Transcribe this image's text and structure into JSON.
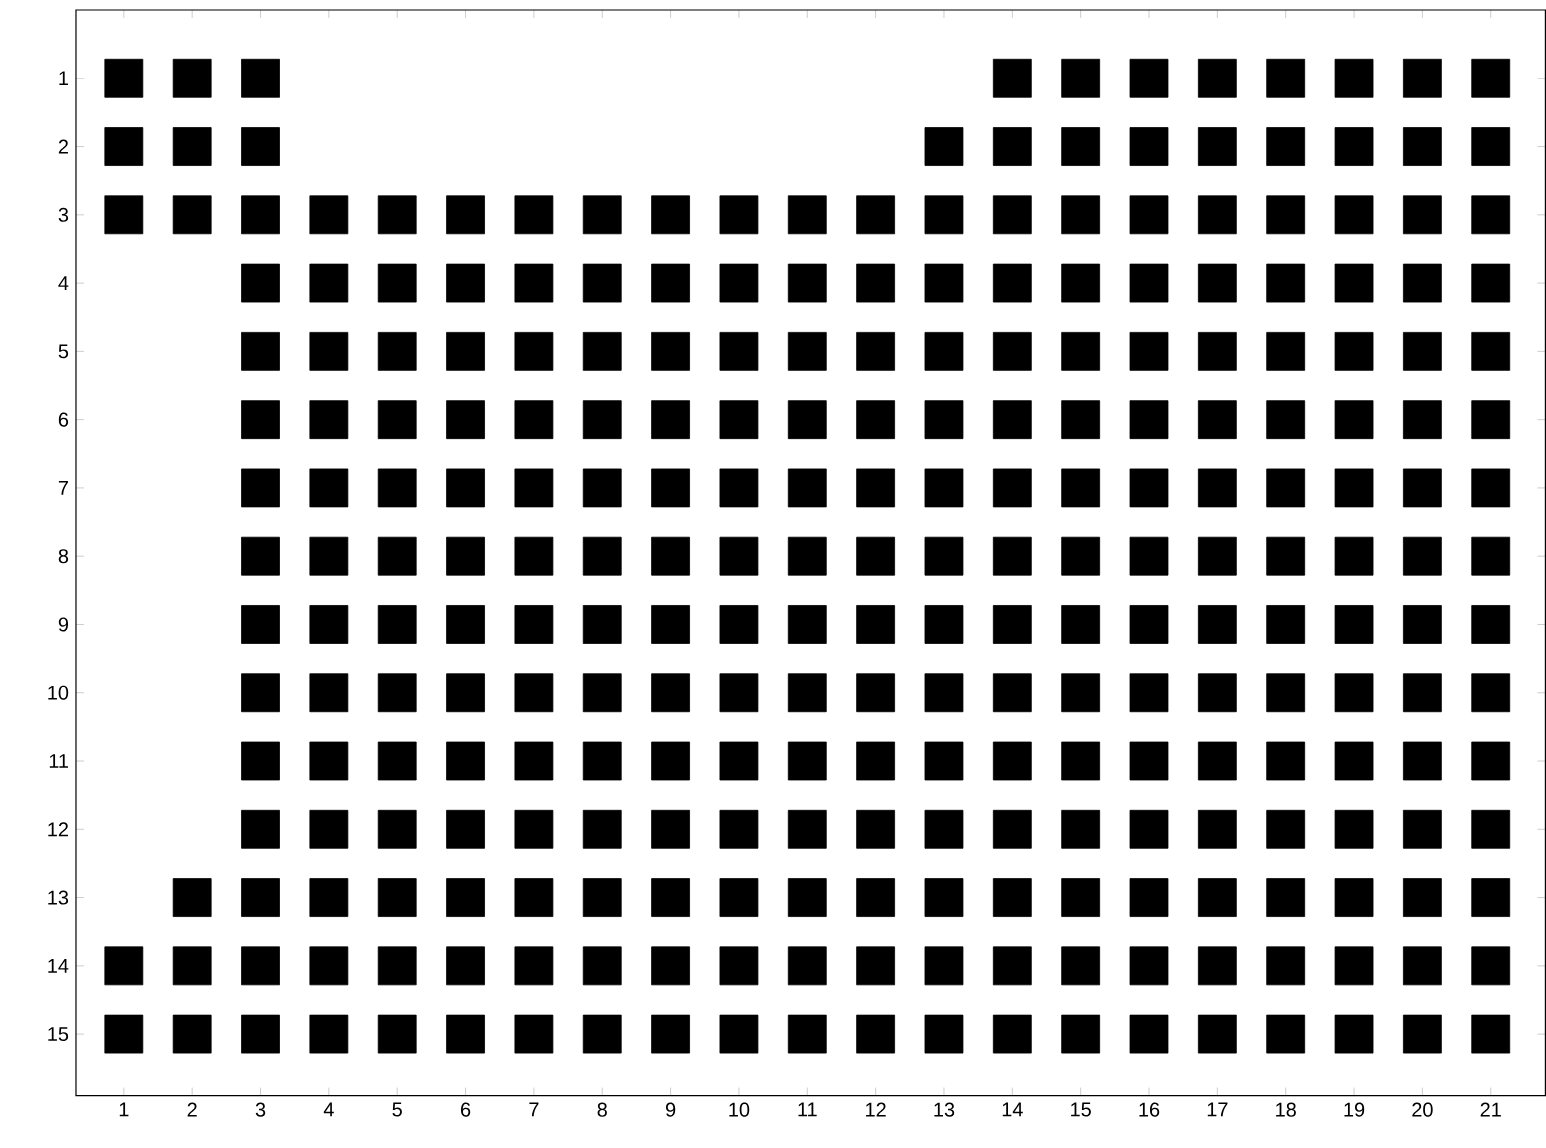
{
  "chart_data": {
    "type": "scatter",
    "marker": "square",
    "xlim": [
      0.3,
      21.8
    ],
    "ylim": [
      15.9,
      0
    ],
    "xticks": [
      1,
      2,
      3,
      4,
      5,
      6,
      7,
      8,
      9,
      10,
      11,
      12,
      13,
      14,
      15,
      16,
      17,
      18,
      19,
      20,
      21
    ],
    "yticks": [
      1,
      2,
      3,
      4,
      5,
      6,
      7,
      8,
      9,
      10,
      11,
      12,
      13,
      14,
      15
    ],
    "series": [
      {
        "color": "#000000",
        "x": [
          1,
          2,
          3,
          14,
          15,
          16,
          17,
          18,
          19,
          20,
          21
        ],
        "values": [
          1,
          1,
          1,
          1,
          1,
          1,
          1,
          1,
          1,
          1,
          1
        ]
      },
      {
        "color": "#000000",
        "x": [
          1,
          2,
          3,
          13,
          14,
          15,
          16,
          17,
          18,
          19,
          20,
          21
        ],
        "values": [
          2,
          2,
          2,
          2,
          2,
          2,
          2,
          2,
          2,
          2,
          2,
          2
        ]
      },
      {
        "color": "#000000",
        "x": [
          1,
          2,
          3,
          4,
          5,
          6,
          7,
          8,
          9,
          10,
          11,
          12,
          13,
          14,
          15,
          16,
          17,
          18,
          19,
          20,
          21
        ],
        "values": [
          3,
          3,
          3,
          3,
          3,
          3,
          3,
          3,
          3,
          3,
          3,
          3,
          3,
          3,
          3,
          3,
          3,
          3,
          3,
          3,
          3
        ]
      },
      {
        "color": "#000000",
        "x": [
          3,
          4,
          5,
          6,
          7,
          8,
          9,
          10,
          11,
          12,
          13,
          14,
          15,
          16,
          17,
          18,
          19,
          20,
          21
        ],
        "values": [
          4,
          4,
          4,
          4,
          4,
          4,
          4,
          4,
          4,
          4,
          4,
          4,
          4,
          4,
          4,
          4,
          4,
          4,
          4
        ]
      },
      {
        "color": "#000000",
        "x": [
          3,
          4,
          5,
          6,
          7,
          8,
          9,
          10,
          11,
          12,
          13,
          14,
          15,
          16,
          17,
          18,
          19,
          20,
          21
        ],
        "values": [
          5,
          5,
          5,
          5,
          5,
          5,
          5,
          5,
          5,
          5,
          5,
          5,
          5,
          5,
          5,
          5,
          5,
          5,
          5
        ]
      },
      {
        "color": "#000000",
        "x": [
          3,
          4,
          5,
          6,
          7,
          8,
          9,
          10,
          11,
          12,
          13,
          14,
          15,
          16,
          17,
          18,
          19,
          20,
          21
        ],
        "values": [
          6,
          6,
          6,
          6,
          6,
          6,
          6,
          6,
          6,
          6,
          6,
          6,
          6,
          6,
          6,
          6,
          6,
          6,
          6
        ]
      },
      {
        "color": "#000000",
        "x": [
          3,
          4,
          5,
          6,
          7,
          8,
          9,
          10,
          11,
          12,
          13,
          14,
          15,
          16,
          17,
          18,
          19,
          20,
          21
        ],
        "values": [
          7,
          7,
          7,
          7,
          7,
          7,
          7,
          7,
          7,
          7,
          7,
          7,
          7,
          7,
          7,
          7,
          7,
          7,
          7
        ]
      },
      {
        "color": "#000000",
        "x": [
          3,
          4,
          5,
          6,
          7,
          8,
          9,
          10,
          11,
          12,
          13,
          14,
          15,
          16,
          17,
          18,
          19,
          20,
          21
        ],
        "values": [
          8,
          8,
          8,
          8,
          8,
          8,
          8,
          8,
          8,
          8,
          8,
          8,
          8,
          8,
          8,
          8,
          8,
          8,
          8
        ]
      },
      {
        "color": "#000000",
        "x": [
          3,
          4,
          5,
          6,
          7,
          8,
          9,
          10,
          11,
          12,
          13,
          14,
          15,
          16,
          17,
          18,
          19,
          20,
          21
        ],
        "values": [
          9,
          9,
          9,
          9,
          9,
          9,
          9,
          9,
          9,
          9,
          9,
          9,
          9,
          9,
          9,
          9,
          9,
          9,
          9
        ]
      },
      {
        "color": "#000000",
        "x": [
          3,
          4,
          5,
          6,
          7,
          8,
          9,
          10,
          11,
          12,
          13,
          14,
          15,
          16,
          17,
          18,
          19,
          20,
          21
        ],
        "values": [
          10,
          10,
          10,
          10,
          10,
          10,
          10,
          10,
          10,
          10,
          10,
          10,
          10,
          10,
          10,
          10,
          10,
          10,
          10
        ]
      },
      {
        "color": "#000000",
        "x": [
          3,
          4,
          5,
          6,
          7,
          8,
          9,
          10,
          11,
          12,
          13,
          14,
          15,
          16,
          17,
          18,
          19,
          20,
          21
        ],
        "values": [
          11,
          11,
          11,
          11,
          11,
          11,
          11,
          11,
          11,
          11,
          11,
          11,
          11,
          11,
          11,
          11,
          11,
          11,
          11
        ]
      },
      {
        "color": "#000000",
        "x": [
          3,
          4,
          5,
          6,
          7,
          8,
          9,
          10,
          11,
          12,
          13,
          14,
          15,
          16,
          17,
          18,
          19,
          20,
          21
        ],
        "values": [
          12,
          12,
          12,
          12,
          12,
          12,
          12,
          12,
          12,
          12,
          12,
          12,
          12,
          12,
          12,
          12,
          12,
          12,
          12
        ]
      },
      {
        "color": "#000000",
        "x": [
          2,
          3,
          4,
          5,
          6,
          7,
          8,
          9,
          10,
          11,
          12,
          13,
          14,
          15,
          16,
          17,
          18,
          19,
          20,
          21
        ],
        "values": [
          13,
          13,
          13,
          13,
          13,
          13,
          13,
          13,
          13,
          13,
          13,
          13,
          13,
          13,
          13,
          13,
          13,
          13,
          13,
          13
        ]
      },
      {
        "color": "#000000",
        "x": [
          1,
          2,
          3,
          4,
          5,
          6,
          7,
          8,
          9,
          10,
          11,
          12,
          13,
          14,
          15,
          16,
          17,
          18,
          19,
          20,
          21
        ],
        "values": [
          14,
          14,
          14,
          14,
          14,
          14,
          14,
          14,
          14,
          14,
          14,
          14,
          14,
          14,
          14,
          14,
          14,
          14,
          14,
          14,
          14
        ]
      },
      {
        "color": "#000000",
        "x": [
          1,
          2,
          3,
          4,
          5,
          6,
          7,
          8,
          9,
          10,
          11,
          12,
          13,
          14,
          15,
          16,
          17,
          18,
          19,
          20,
          21
        ],
        "values": [
          15,
          15,
          15,
          15,
          15,
          15,
          15,
          15,
          15,
          15,
          15,
          15,
          15,
          15,
          15,
          15,
          15,
          15,
          15,
          15,
          15
        ]
      }
    ]
  }
}
